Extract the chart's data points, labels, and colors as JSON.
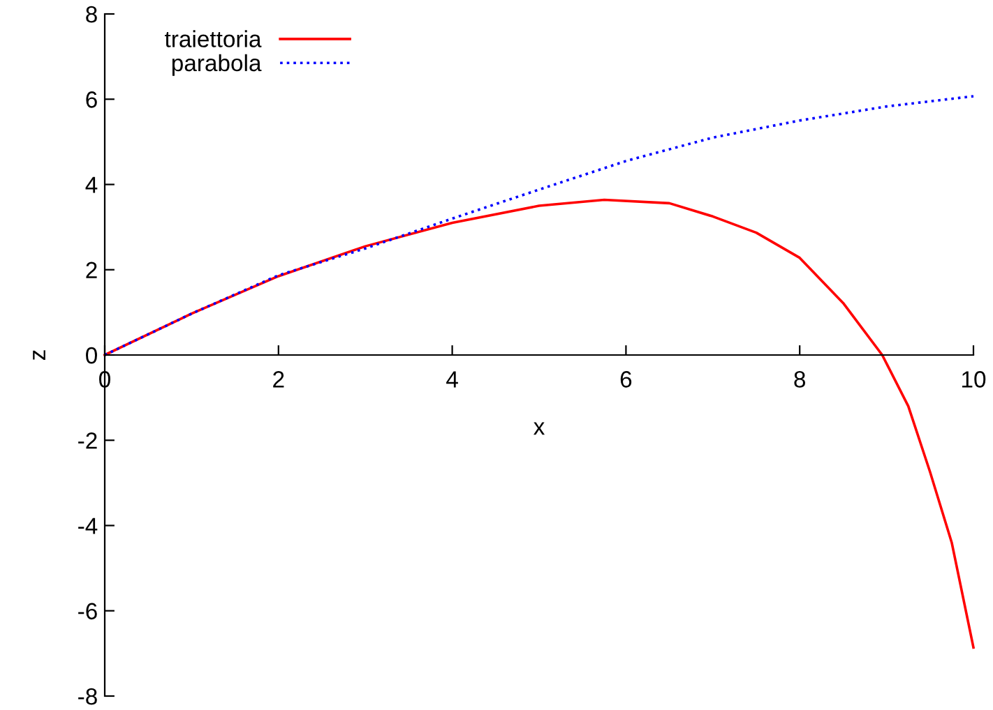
{
  "chart_data": {
    "type": "line",
    "xlabel": "x",
    "ylabel": "z",
    "xlim": [
      0,
      10
    ],
    "ylim": [
      -8,
      8
    ],
    "xticks": [
      0,
      2,
      4,
      6,
      8,
      10
    ],
    "yticks": [
      -8,
      -6,
      -4,
      -2,
      0,
      2,
      4,
      6,
      8
    ],
    "grid": false,
    "legend": "top left",
    "series": [
      {
        "name": "traiettoria",
        "color": "#ff0000",
        "line_style": "solid",
        "x": [
          0,
          1,
          2,
          3,
          4,
          5,
          5.75,
          6.5,
          7,
          7.5,
          8,
          8.5,
          8.95,
          9.25,
          9.5,
          9.75,
          10
        ],
        "values": [
          0,
          0.97,
          1.85,
          2.55,
          3.1,
          3.5,
          3.64,
          3.56,
          3.25,
          2.87,
          2.28,
          1.22,
          0,
          -1.2,
          -2.74,
          -4.4,
          -6.86
        ]
      },
      {
        "name": "parabola",
        "color": "#0000ff",
        "line_style": "dotted",
        "x": [
          0,
          1,
          2,
          3,
          4,
          5,
          6,
          7,
          8,
          9,
          10
        ],
        "values": [
          0,
          0.97,
          1.87,
          2.5,
          3.2,
          3.88,
          4.55,
          5.1,
          5.5,
          5.83,
          6.07
        ]
      }
    ]
  }
}
